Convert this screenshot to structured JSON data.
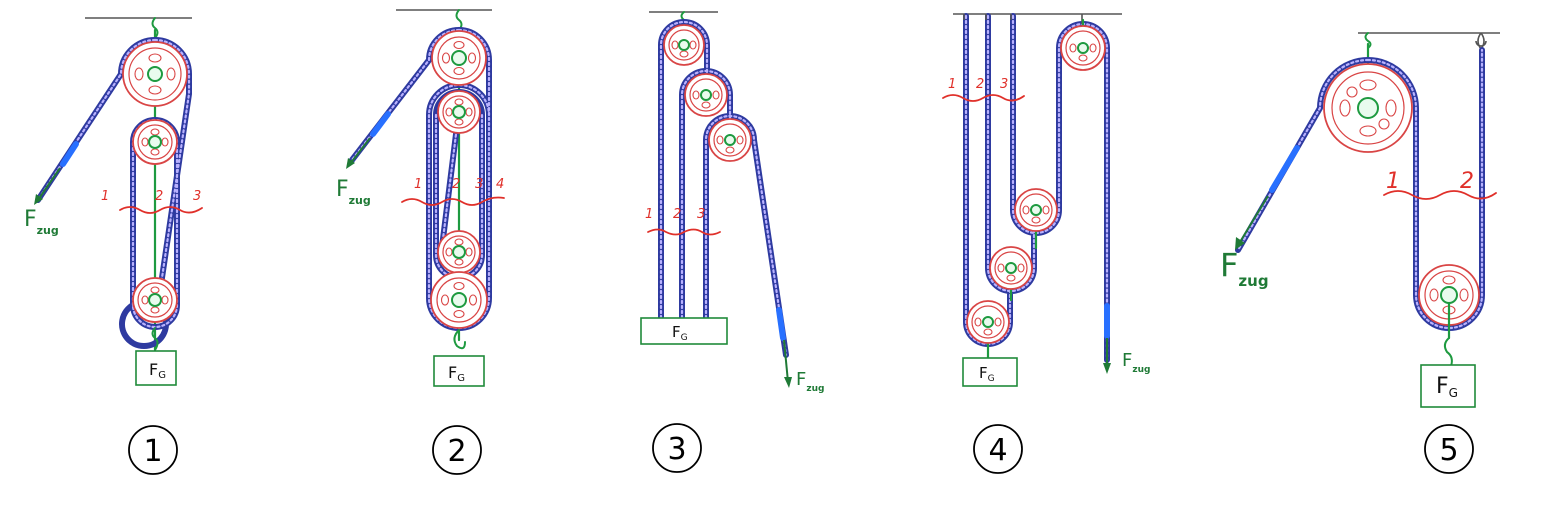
{
  "diagrams": [
    {
      "number": "1",
      "load_label": "F",
      "load_sub": "G",
      "force_label": "F",
      "force_sub": "zug",
      "rope_labels": [
        "1",
        "2",
        "3"
      ]
    },
    {
      "number": "2",
      "load_label": "F",
      "load_sub": "G",
      "force_label": "F",
      "force_sub": "zug",
      "rope_labels": [
        "1",
        "2",
        "3",
        "4"
      ]
    },
    {
      "number": "3",
      "load_label": "F",
      "load_sub": "G",
      "force_label": "F",
      "force_sub": "zug",
      "rope_labels": [
        "1",
        "2",
        "3"
      ]
    },
    {
      "number": "4",
      "load_label": "F",
      "load_sub": "G",
      "force_label": "F",
      "force_sub": "zug",
      "rope_labels": [
        "1",
        "2",
        "3"
      ]
    },
    {
      "number": "5",
      "load_label": "F",
      "load_sub": "G",
      "force_label": "F",
      "force_sub": "zug",
      "rope_labels": [
        "1",
        "2"
      ]
    }
  ],
  "colors": {
    "rope": "#2e3aa0",
    "rope_highlight": "#b9b2ff",
    "rope_grip": "#2870ff",
    "pulley": "#d94545",
    "hanger": "#1e9a40",
    "force": "#1f7a36",
    "cut_label": "#e0302a"
  }
}
